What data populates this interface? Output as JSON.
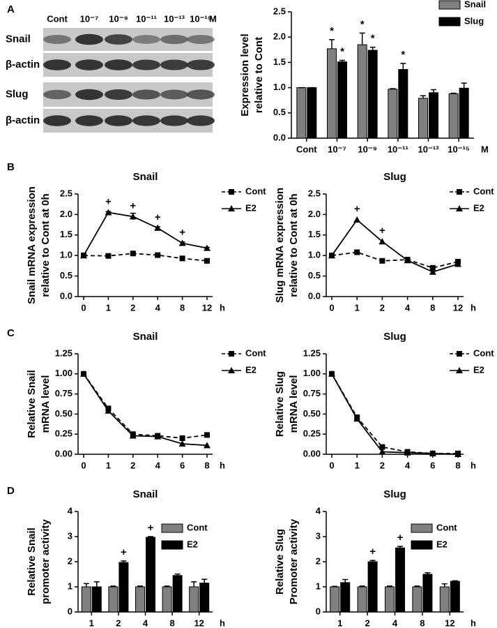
{
  "panels": [
    "A",
    "B",
    "C",
    "D"
  ],
  "blot": {
    "columns": [
      "Cont",
      "10⁻⁷",
      "10⁻⁹",
      "10⁻¹¹",
      "10⁻¹³",
      "10⁻¹⁵"
    ],
    "unit": "M",
    "rows": [
      "Snail",
      "β-actin",
      "Slug",
      "β-actin"
    ]
  },
  "chart_data": [
    {
      "type": "bar",
      "ylabel": [
        "Expression level",
        "relative to Cont"
      ],
      "categories": [
        "Cont",
        "10⁻⁷",
        "10⁻⁹",
        "10⁻¹¹",
        "10⁻¹³",
        "10⁻¹⁵"
      ],
      "x_unit": "M",
      "ylim": [
        0,
        2.5
      ],
      "yticks": [
        {
          "value": 0,
          "label": "0.0"
        },
        0.5,
        {
          "value": 1,
          "label": "1.0"
        },
        1.5,
        {
          "value": 2,
          "label": "2.0"
        },
        2.5
      ],
      "series": [
        {
          "name": "Snail",
          "color": "#808080",
          "values": [
            1.0,
            1.77,
            1.85,
            0.97,
            0.79,
            0.88
          ],
          "errors": [
            0,
            0.18,
            0.23,
            0.01,
            0.05,
            0.01
          ],
          "annotations": [
            null,
            "*",
            "*",
            null,
            null,
            null
          ]
        },
        {
          "name": "Slug",
          "color": "#000000",
          "values": [
            1.0,
            1.51,
            1.74,
            1.36,
            0.9,
            0.99
          ],
          "errors": [
            0,
            0.03,
            0.06,
            0.12,
            0.06,
            0.1
          ],
          "annotations": [
            null,
            "*",
            "*",
            "*",
            null,
            null
          ]
        }
      ]
    },
    {
      "type": "line",
      "title": "Snail",
      "ylabel": [
        "Snail mRNA expression",
        "relative to Cont at 0h"
      ],
      "categories": [
        "0",
        "1",
        "2",
        "4",
        "8",
        "12"
      ],
      "x_unit": "h",
      "ylim": [
        0,
        2.5
      ],
      "yticks": [
        {
          "value": 0,
          "label": "0.0"
        },
        0.5,
        {
          "value": 1,
          "label": "1.0"
        },
        1.5,
        {
          "value": 2,
          "label": "2.0"
        },
        2.5
      ],
      "series": [
        {
          "name": "Cont",
          "color": "#000000",
          "marker": "square",
          "dash": true,
          "values": [
            1.0,
            0.99,
            1.05,
            1.01,
            0.93,
            0.87
          ]
        },
        {
          "name": "E2",
          "color": "#000000",
          "marker": "triangle",
          "dash": false,
          "values": [
            1.0,
            2.05,
            1.95,
            1.67,
            1.3,
            1.18
          ],
          "errors": [
            0,
            0.02,
            0.08,
            0.03,
            0.03,
            0.02
          ],
          "annotations": [
            null,
            "+",
            "+",
            "+",
            "+",
            null
          ]
        }
      ]
    },
    {
      "type": "line",
      "title": "Slug",
      "ylabel": [
        "Slug mRNA expression",
        "relative to Cont at 0h"
      ],
      "categories": [
        "0",
        "1",
        "2",
        "4",
        "8",
        "12"
      ],
      "x_unit": "h",
      "ylim": [
        0,
        2.5
      ],
      "yticks": [
        {
          "value": 0,
          "label": "0.0"
        },
        0.5,
        {
          "value": 1,
          "label": "1.0"
        },
        1.5,
        {
          "value": 2,
          "label": "2.0"
        },
        2.5
      ],
      "series": [
        {
          "name": "Cont",
          "color": "#000000",
          "marker": "square",
          "dash": true,
          "values": [
            1.0,
            1.08,
            0.87,
            0.9,
            0.7,
            0.85
          ]
        },
        {
          "name": "E2",
          "color": "#000000",
          "marker": "triangle",
          "dash": false,
          "values": [
            1.0,
            1.87,
            1.34,
            0.88,
            0.6,
            0.79
          ],
          "annotations": [
            null,
            "+",
            "+",
            null,
            null,
            null
          ]
        }
      ]
    },
    {
      "type": "line",
      "title": "Snail",
      "ylabel": [
        "Relative Snail",
        "mRNA level"
      ],
      "categories": [
        "0",
        "1",
        "2",
        "4",
        "6",
        "8"
      ],
      "x_unit": "h",
      "ylim": [
        0,
        1.25
      ],
      "yticks": [
        {
          "value": 0,
          "label": "0.00"
        },
        0.25,
        {
          "value": 0.5,
          "label": "0.50"
        },
        0.75,
        {
          "value": 1,
          "label": "1.00"
        },
        1.25
      ],
      "series": [
        {
          "name": "Cont",
          "color": "#000000",
          "marker": "square",
          "dash": true,
          "values": [
            1.0,
            0.57,
            0.25,
            0.23,
            0.2,
            0.24
          ]
        },
        {
          "name": "E2",
          "color": "#000000",
          "marker": "triangle",
          "dash": false,
          "values": [
            1.0,
            0.54,
            0.23,
            0.22,
            0.13,
            0.11
          ]
        }
      ]
    },
    {
      "type": "line",
      "title": "Slug",
      "ylabel": [
        "Relative Slug",
        "mRNA level"
      ],
      "categories": [
        "0",
        "1",
        "2",
        "4",
        "6",
        "8"
      ],
      "x_unit": "h",
      "ylim": [
        0,
        1.25
      ],
      "yticks": [
        {
          "value": 0,
          "label": "0.00"
        },
        0.25,
        {
          "value": 0.5,
          "label": "0.50"
        },
        0.75,
        {
          "value": 1,
          "label": "1.00"
        },
        1.25
      ],
      "series": [
        {
          "name": "Cont",
          "color": "#000000",
          "marker": "square",
          "dash": true,
          "values": [
            1.0,
            0.46,
            0.09,
            0.03,
            0.01,
            0.01
          ]
        },
        {
          "name": "E2",
          "color": "#000000",
          "marker": "triangle",
          "dash": false,
          "values": [
            1.0,
            0.44,
            0.03,
            0.02,
            0.01,
            0.0
          ]
        }
      ]
    },
    {
      "type": "bar",
      "title": "Snail",
      "ylabel": [
        "Relative Snail",
        "promoter activity"
      ],
      "categories": [
        "1",
        "2",
        "4",
        "8",
        "12"
      ],
      "x_unit": "h",
      "ylim": [
        0,
        4
      ],
      "yticks": [
        0,
        1,
        2,
        3,
        4
      ],
      "series": [
        {
          "name": "Cont",
          "color": "#808080",
          "values": [
            1.0,
            1.0,
            1.0,
            1.0,
            1.0
          ],
          "errors": [
            0.13,
            0.03,
            0.03,
            0.03,
            0.2
          ]
        },
        {
          "name": "E2",
          "color": "#000000",
          "values": [
            1.0,
            1.97,
            2.97,
            1.45,
            1.15
          ],
          "errors": [
            0.2,
            0.06,
            0.03,
            0.06,
            0.15
          ],
          "annotations": [
            null,
            "+",
            "+",
            null,
            null
          ]
        }
      ]
    },
    {
      "type": "bar",
      "title": "Slug",
      "ylabel": [
        "Relative Slug",
        "Promoter activity"
      ],
      "categories": [
        "1",
        "2",
        "4",
        "8",
        "12"
      ],
      "x_unit": "h",
      "ylim": [
        0,
        4
      ],
      "yticks": [
        0,
        1,
        2,
        3,
        4
      ],
      "series": [
        {
          "name": "Cont",
          "color": "#808080",
          "values": [
            1.0,
            1.0,
            1.0,
            1.0,
            1.0
          ],
          "errors": [
            0.02,
            0.03,
            0.03,
            0.03,
            0.12
          ]
        },
        {
          "name": "E2",
          "color": "#000000",
          "values": [
            1.17,
            2.0,
            2.55,
            1.5,
            1.22
          ],
          "errors": [
            0.12,
            0.05,
            0.06,
            0.06,
            0.02
          ],
          "annotations": [
            null,
            "+",
            "+",
            null,
            null
          ]
        }
      ]
    }
  ]
}
